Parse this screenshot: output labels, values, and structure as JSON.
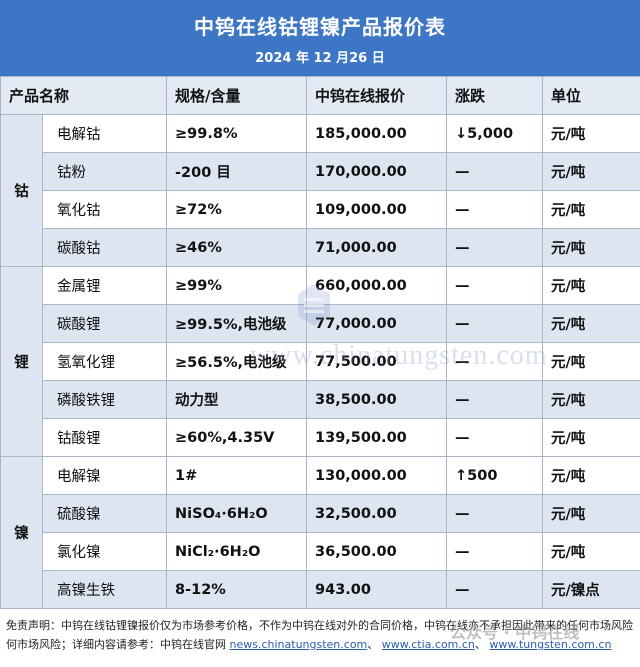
{
  "header": {
    "title": "中钨在线钴锂镍产品报价表",
    "date": "2024 年 12 月26 日"
  },
  "columns": [
    "产品名称",
    "规格/含量",
    "中钨在线报价",
    "涨跌",
    "单位"
  ],
  "groups": [
    {
      "name": "钴",
      "rows": [
        {
          "name": "电解钴",
          "spec": "≥99.8%",
          "price": "185,000.00",
          "change": "↓5,000",
          "unit": "元/吨"
        },
        {
          "name": "钴粉",
          "spec": "-200 目",
          "price": "170,000.00",
          "change": "—",
          "unit": "元/吨"
        },
        {
          "name": "氧化钴",
          "spec": "≥72%",
          "price": "109,000.00",
          "change": "—",
          "unit": "元/吨"
        },
        {
          "name": "碳酸钴",
          "spec": "≥46%",
          "price": "71,000.00",
          "change": "—",
          "unit": "元/吨"
        }
      ]
    },
    {
      "name": "锂",
      "rows": [
        {
          "name": "金属锂",
          "spec": "≥99%",
          "price": "660,000.00",
          "change": "—",
          "unit": "元/吨"
        },
        {
          "name": "碳酸锂",
          "spec": "≥99.5%,电池级",
          "price": "77,000.00",
          "change": "—",
          "unit": "元/吨"
        },
        {
          "name": "氢氧化锂",
          "spec": "≥56.5%,电池级",
          "price": "77,500.00",
          "change": "—",
          "unit": "元/吨"
        },
        {
          "name": "磷酸铁锂",
          "spec": "动力型",
          "price": "38,500.00",
          "change": "—",
          "unit": "元/吨"
        },
        {
          "name": "钴酸锂",
          "spec": "≥60%,4.35V",
          "price": "139,500.00",
          "change": "—",
          "unit": "元/吨"
        }
      ]
    },
    {
      "name": "镍",
      "rows": [
        {
          "name": "电解镍",
          "spec": "1#",
          "price": "130,000.00",
          "change": "↑500",
          "unit": "元/吨"
        },
        {
          "name": "硫酸镍",
          "spec": "NiSO₄·6H₂O",
          "price": "32,500.00",
          "change": "—",
          "unit": "元/吨"
        },
        {
          "name": "氯化镍",
          "spec": "NiCl₂·6H₂O",
          "price": "36,500.00",
          "change": "—",
          "unit": "元/吨"
        },
        {
          "name": "高镍生铁",
          "spec": "8-12%",
          "price": "943.00",
          "change": "—",
          "unit": "元/镍点"
        }
      ]
    }
  ],
  "footer": {
    "line1": "免责声明：中钨在线钴锂镍报价仅为市场参考价格，不作为中钨在线对外的合同价格，中钨在线亦不承担因此带来的任何市场风险；",
    "line2_prefix": "何市场风险；详细内容请参考：中钨在线官网",
    "url1": "news.chinatungsten.com",
    "url2": "www.ctia.com.cn",
    "url3": "www.tungsten.com.cn",
    "wechat": "公众号 · 中钨在线"
  },
  "watermark": "www.chinatungsten.com"
}
